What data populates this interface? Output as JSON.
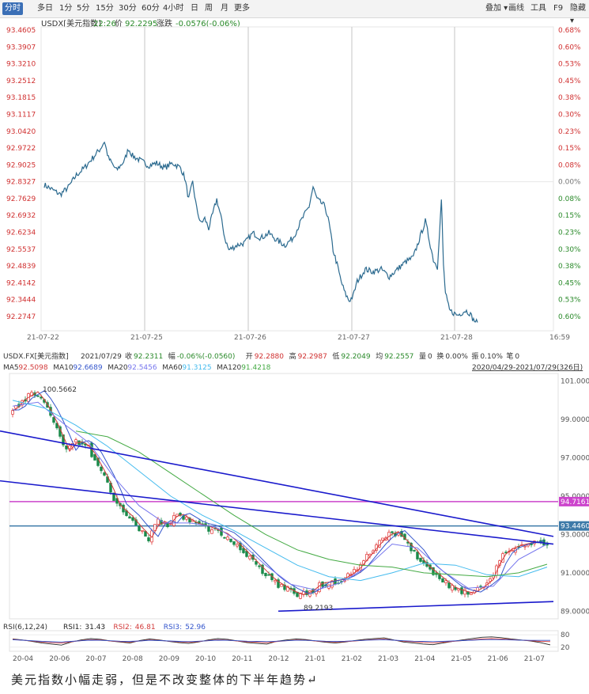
{
  "toolbar": {
    "periods": [
      "分时",
      "多日",
      "1分",
      "5分",
      "15分",
      "30分",
      "60分",
      "4小时",
      "日",
      "周",
      "月",
      "更多"
    ],
    "active": "分时",
    "tools": [
      "叠加",
      "画线",
      "工具",
      "F9",
      "隐藏"
    ]
  },
  "intraday": {
    "symbol": "USDX[美元指数]",
    "time": "22:26",
    "price_label": "价",
    "price": "92.2295",
    "change_label": "涨跌",
    "change": "-0.0576(-0.06%)",
    "last_time": "16:59"
  },
  "daily": {
    "symbol": "USDX.FX[美元指数]",
    "date": "2021/07/29",
    "quote": [
      {
        "label": "收",
        "value": "92.2311"
      },
      {
        "label": "幅",
        "value": "-0.06%(-0.0560)"
      },
      {
        "label": "开",
        "value": "92.2880"
      },
      {
        "label": "高",
        "value": "92.2987"
      },
      {
        "label": "低",
        "value": "92.2049"
      },
      {
        "label": "均",
        "value": "92.2557"
      },
      {
        "label": "量",
        "value": "0"
      },
      {
        "label": "换",
        "value": "0.00%"
      },
      {
        "label": "振",
        "value": "0.10%"
      },
      {
        "label": "笔",
        "value": "0"
      }
    ],
    "ma": [
      {
        "label": "MA5",
        "value": "92.5098",
        "color": "#d23a3a"
      },
      {
        "label": "MA10",
        "value": "92.6689",
        "color": "#3355cc"
      },
      {
        "label": "MA20",
        "value": "92.5456",
        "color": "#7777ee"
      },
      {
        "label": "MA60",
        "value": "91.3125",
        "color": "#44bbee"
      },
      {
        "label": "MA120",
        "value": "91.4218",
        "color": "#44aa44"
      }
    ],
    "range": "2020/04/29-2021/07/29(326日)",
    "rsi_title": "RSI(6,12,24)",
    "rsi": [
      {
        "label": "RSI1",
        "value": "31.43",
        "color": "#222222"
      },
      {
        "label": "RSI2",
        "value": "46.81",
        "color": "#d23a3a"
      },
      {
        "label": "RSI3",
        "value": "52.96",
        "color": "#3355cc"
      }
    ],
    "rsi_ticks": [
      "80",
      "20"
    ]
  },
  "caption": "美元指数小幅走弱，但是不改变整体的下半年趋势↵",
  "chart_data": [
    {
      "type": "line",
      "name": "intraday",
      "prev_close": 92.8327,
      "y_ticks": [
        "93.4605",
        "93.3907",
        "93.3210",
        "93.2512",
        "93.1815",
        "93.1117",
        "93.0420",
        "92.9722",
        "92.9025",
        "92.8327",
        "92.7629",
        "92.6932",
        "92.6234",
        "92.5537",
        "92.4839",
        "92.4142",
        "92.3444",
        "92.2747"
      ],
      "y_tick_values": [
        93.4605,
        93.3907,
        93.321,
        93.2512,
        93.1815,
        93.1117,
        93.042,
        92.9722,
        92.9025,
        92.8327,
        92.7629,
        92.6932,
        92.6234,
        92.5537,
        92.4839,
        92.4142,
        92.3444,
        92.2747
      ],
      "pct_ticks": [
        "0.68%",
        "0.60%",
        "0.53%",
        "0.45%",
        "0.38%",
        "0.30%",
        "0.23%",
        "0.15%",
        "0.08%",
        "0.00%",
        "0.08%",
        "0.15%",
        "0.23%",
        "0.30%",
        "0.38%",
        "0.45%",
        "0.53%",
        "0.60%"
      ],
      "x_labels": [
        "21-07-22",
        "21-07-25",
        "21-07-26",
        "21-07-27",
        "21-07-28"
      ],
      "ylim": [
        92.2747,
        93.4605
      ],
      "color": "#2b6a8f",
      "series": [
        {
          "t": 0,
          "v": 92.82
        },
        {
          "t": 2,
          "v": 92.8
        },
        {
          "t": 4,
          "v": 92.78
        },
        {
          "t": 6,
          "v": 92.81
        },
        {
          "t": 8,
          "v": 92.86
        },
        {
          "t": 10,
          "v": 92.89
        },
        {
          "t": 12,
          "v": 92.93
        },
        {
          "t": 14,
          "v": 92.97
        },
        {
          "t": 15,
          "v": 93.0
        },
        {
          "t": 16,
          "v": 92.93
        },
        {
          "t": 18,
          "v": 92.88
        },
        {
          "t": 20,
          "v": 92.92
        },
        {
          "t": 21,
          "v": 92.97
        },
        {
          "t": 22,
          "v": 92.94
        },
        {
          "t": 24,
          "v": 92.92
        },
        {
          "t": 26,
          "v": 92.9
        },
        {
          "t": 28,
          "v": 92.91
        },
        {
          "t": 30,
          "v": 92.89
        },
        {
          "t": 32,
          "v": 92.91
        },
        {
          "t": 34,
          "v": 92.89
        },
        {
          "t": 35,
          "v": 92.85
        },
        {
          "t": 36,
          "v": 92.76
        },
        {
          "t": 37,
          "v": 92.83
        },
        {
          "t": 38,
          "v": 92.72
        },
        {
          "t": 39,
          "v": 92.66
        },
        {
          "t": 40,
          "v": 92.68
        },
        {
          "t": 41,
          "v": 92.64
        },
        {
          "t": 42,
          "v": 92.7
        },
        {
          "t": 43,
          "v": 92.76
        },
        {
          "t": 44,
          "v": 92.69
        },
        {
          "t": 45,
          "v": 92.6
        },
        {
          "t": 46,
          "v": 92.55
        },
        {
          "t": 48,
          "v": 92.57
        },
        {
          "t": 50,
          "v": 92.58
        },
        {
          "t": 52,
          "v": 92.62
        },
        {
          "t": 54,
          "v": 92.6
        },
        {
          "t": 56,
          "v": 92.62
        },
        {
          "t": 58,
          "v": 92.59
        },
        {
          "t": 60,
          "v": 92.57
        },
        {
          "t": 62,
          "v": 92.6
        },
        {
          "t": 64,
          "v": 92.67
        },
        {
          "t": 66,
          "v": 92.73
        },
        {
          "t": 67,
          "v": 92.81
        },
        {
          "t": 68,
          "v": 92.76
        },
        {
          "t": 70,
          "v": 92.73
        },
        {
          "t": 71,
          "v": 92.66
        },
        {
          "t": 72,
          "v": 92.55
        },
        {
          "t": 73,
          "v": 92.49
        },
        {
          "t": 74,
          "v": 92.42
        },
        {
          "t": 75,
          "v": 92.37
        },
        {
          "t": 76,
          "v": 92.34
        },
        {
          "t": 77,
          "v": 92.36
        },
        {
          "t": 78,
          "v": 92.42
        },
        {
          "t": 80,
          "v": 92.47
        },
        {
          "t": 82,
          "v": 92.46
        },
        {
          "t": 84,
          "v": 92.47
        },
        {
          "t": 86,
          "v": 92.44
        },
        {
          "t": 88,
          "v": 92.47
        },
        {
          "t": 90,
          "v": 92.5
        },
        {
          "t": 92,
          "v": 92.52
        },
        {
          "t": 94,
          "v": 92.62
        },
        {
          "t": 95,
          "v": 92.67
        },
        {
          "t": 96,
          "v": 92.59
        },
        {
          "t": 97,
          "v": 92.51
        },
        {
          "t": 98,
          "v": 92.48
        },
        {
          "t": 99,
          "v": 92.76
        },
        {
          "t": 99.5,
          "v": 92.49
        },
        {
          "t": 100,
          "v": 92.37
        },
        {
          "t": 101,
          "v": 92.3
        },
        {
          "t": 103,
          "v": 92.28
        },
        {
          "t": 105,
          "v": 92.3
        },
        {
          "t": 106,
          "v": 92.29
        },
        {
          "t": 107,
          "v": 92.26
        },
        {
          "t": 108,
          "v": 92.25
        }
      ]
    },
    {
      "type": "candlestick",
      "name": "daily",
      "ylim": [
        88.6,
        101.4
      ],
      "y_ticks": [
        101.0,
        99.0,
        97.0,
        95.0,
        93.0,
        91.0,
        89.0
      ],
      "y_tick_labels": [
        "101.0000",
        "99.0000",
        "97.0000",
        "95.0000",
        "93.0000",
        "91.0000",
        "89.0000"
      ],
      "x_labels": [
        "20-04",
        "20-06",
        "20-07",
        "20-08",
        "20-09",
        "20-10",
        "20-11",
        "20-12",
        "21-01",
        "21-02",
        "21-03",
        "21-04",
        "21-05",
        "21-06",
        "21-07"
      ],
      "annotations": [
        {
          "label": "100.5662",
          "value": 100.5662
        },
        {
          "label": "89.2193",
          "value": 89.2193
        },
        {
          "label": "94.7161",
          "value": 94.7161
        },
        {
          "label": "93.4460",
          "value": 93.446
        }
      ],
      "path_points": [
        [
          0,
          99.4
        ],
        [
          3,
          100.0
        ],
        [
          7,
          100.4
        ],
        [
          10,
          99.8
        ],
        [
          14,
          98.5
        ],
        [
          17,
          97.3
        ],
        [
          20,
          97.9
        ],
        [
          24,
          97.5
        ],
        [
          27,
          96.6
        ],
        [
          30,
          95.7
        ],
        [
          33,
          94.5
        ],
        [
          37,
          93.9
        ],
        [
          40,
          93.3
        ],
        [
          43,
          92.8
        ],
        [
          46,
          93.7
        ],
        [
          49,
          93.5
        ],
        [
          52,
          94.1
        ],
        [
          55,
          93.8
        ],
        [
          58,
          93.5
        ],
        [
          61,
          93.4
        ],
        [
          64,
          93.2
        ],
        [
          67,
          93.0
        ],
        [
          70,
          92.6
        ],
        [
          73,
          92.1
        ],
        [
          76,
          91.6
        ],
        [
          79,
          91.1
        ],
        [
          82,
          90.6
        ],
        [
          85,
          90.3
        ],
        [
          88,
          90.0
        ],
        [
          91,
          89.8
        ],
        [
          94,
          90.0
        ],
        [
          97,
          90.4
        ],
        [
          100,
          90.5
        ],
        [
          103,
          90.6
        ],
        [
          106,
          90.8
        ],
        [
          109,
          91.2
        ],
        [
          112,
          91.8
        ],
        [
          115,
          92.4
        ],
        [
          118,
          92.9
        ],
        [
          121,
          93.1
        ],
        [
          124,
          92.6
        ],
        [
          127,
          92.1
        ],
        [
          130,
          91.4
        ],
        [
          133,
          91.0
        ],
        [
          136,
          90.6
        ],
        [
          139,
          90.2
        ],
        [
          142,
          90.0
        ],
        [
          145,
          89.9
        ],
        [
          148,
          90.2
        ],
        [
          151,
          90.6
        ],
        [
          154,
          91.8
        ],
        [
          157,
          92.2
        ],
        [
          160,
          92.4
        ],
        [
          163,
          92.5
        ],
        [
          166,
          92.6
        ],
        [
          169,
          92.3
        ]
      ],
      "moving_averages": [
        {
          "name": "MA20",
          "color": "#7777ee",
          "points": [
            [
              0,
              99.7
            ],
            [
              8,
              99.9
            ],
            [
              16,
              98.8
            ],
            [
              24,
              97.8
            ],
            [
              32,
              96.0
            ],
            [
              40,
              94.5
            ],
            [
              48,
              93.6
            ],
            [
              56,
              93.6
            ],
            [
              64,
              93.4
            ],
            [
              72,
              92.6
            ],
            [
              80,
              91.4
            ],
            [
              88,
              90.4
            ],
            [
              96,
              90.1
            ],
            [
              104,
              90.5
            ],
            [
              112,
              91.3
            ],
            [
              120,
              92.5
            ],
            [
              128,
              92.3
            ],
            [
              136,
              91.1
            ],
            [
              144,
              90.2
            ],
            [
              152,
              90.3
            ],
            [
              160,
              91.7
            ],
            [
              169,
              92.5
            ]
          ]
        },
        {
          "name": "MA60",
          "color": "#44bbee",
          "points": [
            [
              0,
              100.0
            ],
            [
              10,
              99.6
            ],
            [
              20,
              98.7
            ],
            [
              30,
              97.6
            ],
            [
              40,
              96.3
            ],
            [
              50,
              95.0
            ],
            [
              60,
              94.0
            ],
            [
              70,
              93.2
            ],
            [
              80,
              92.3
            ],
            [
              90,
              91.4
            ],
            [
              100,
              90.8
            ],
            [
              110,
              90.6
            ],
            [
              120,
              91.0
            ],
            [
              130,
              91.5
            ],
            [
              140,
              91.4
            ],
            [
              150,
              90.9
            ],
            [
              160,
              90.8
            ],
            [
              169,
              91.3
            ]
          ]
        },
        {
          "name": "MA120",
          "color": "#44aa44",
          "points": [
            [
              20,
              98.4
            ],
            [
              30,
              98.1
            ],
            [
              40,
              97.3
            ],
            [
              50,
              96.2
            ],
            [
              60,
              95.1
            ],
            [
              70,
              94.0
            ],
            [
              80,
              93.0
            ],
            [
              90,
              92.2
            ],
            [
              100,
              91.7
            ],
            [
              110,
              91.4
            ],
            [
              120,
              91.3
            ],
            [
              130,
              91.0
            ],
            [
              140,
              90.9
            ],
            [
              150,
              90.8
            ],
            [
              160,
              91.0
            ],
            [
              169,
              91.45
            ]
          ]
        }
      ],
      "trendlines": [
        {
          "from": [
            -4,
            98.4
          ],
          "to": [
            171,
            92.9
          ]
        },
        {
          "from": [
            -4,
            95.8
          ],
          "to": [
            171,
            92.5
          ]
        },
        {
          "from": [
            84,
            89.0
          ],
          "to": [
            171,
            89.5
          ]
        }
      ],
      "hlines": [
        {
          "value": 94.7161,
          "color": "#cc44cc"
        },
        {
          "value": 93.446,
          "color": "#3d7aa8"
        }
      ]
    },
    {
      "type": "line",
      "name": "rsi",
      "ylim": [
        0,
        100
      ],
      "y_ticks": [
        80,
        20
      ],
      "series": [
        {
          "name": "RSI1",
          "values": [
            60,
            55,
            48,
            40,
            35,
            30,
            45,
            55,
            62,
            58,
            50,
            45,
            40,
            52,
            60,
            55,
            48,
            42,
            38,
            45,
            55,
            62,
            58,
            50,
            42,
            38,
            35,
            48,
            55,
            60,
            57,
            50,
            44,
            40,
            45,
            52,
            58,
            62,
            65,
            55,
            45,
            40,
            35,
            32,
            40,
            48,
            55,
            62,
            68,
            70,
            66,
            60,
            55,
            50,
            42,
            31
          ]
        },
        {
          "name": "RSI2",
          "values": [
            58,
            54,
            50,
            45,
            42,
            40,
            46,
            52,
            56,
            55,
            50,
            47,
            45,
            50,
            55,
            53,
            49,
            46,
            44,
            47,
            52,
            56,
            54,
            50,
            46,
            44,
            42,
            47,
            51,
            55,
            54,
            50,
            47,
            45,
            47,
            50,
            54,
            57,
            59,
            54,
            49,
            46,
            43,
            41,
            44,
            48,
            52,
            56,
            60,
            62,
            60,
            57,
            54,
            51,
            48,
            47
          ]
        },
        {
          "name": "RSI3",
          "values": [
            56,
            54,
            51,
            48,
            46,
            45,
            48,
            51,
            54,
            53,
            51,
            49,
            48,
            50,
            53,
            52,
            50,
            48,
            47,
            49,
            51,
            54,
            53,
            51,
            49,
            48,
            47,
            49,
            51,
            53,
            53,
            51,
            49,
            48,
            49,
            51,
            53,
            55,
            56,
            54,
            51,
            49,
            48,
            47,
            48,
            50,
            52,
            54,
            56,
            57,
            56,
            55,
            54,
            53,
            53,
            53
          ]
        }
      ]
    }
  ]
}
